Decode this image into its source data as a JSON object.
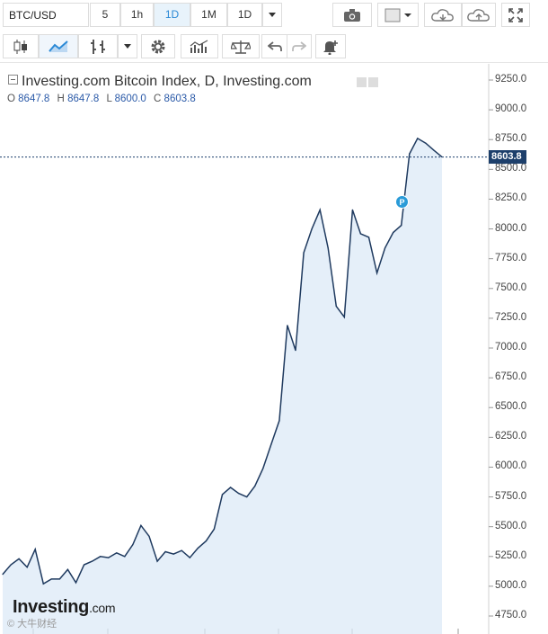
{
  "toolbar": {
    "symbol": "BTC/USD",
    "intervals": [
      {
        "label": "5",
        "active": false
      },
      {
        "label": "1h",
        "active": false
      },
      {
        "label": "1D",
        "active": true
      },
      {
        "label": "1M",
        "active": false
      },
      {
        "label": "1D",
        "active": false
      }
    ],
    "icons": {
      "dropdown": "chevron-down-icon",
      "camera": "camera-icon",
      "color_box": "color-square-icon",
      "cloud_down": "cloud-download-icon",
      "cloud_up": "cloud-upload-icon",
      "fullscreen": "fullscreen-icon",
      "candles": "candlestick-icon",
      "area": "area-chart-icon",
      "bars": "bar-chart-icon",
      "settings": "gear-icon",
      "indicators": "indicators-icon",
      "compare": "scales-icon",
      "undo": "undo-icon",
      "redo": "redo-icon",
      "alert": "bell-plus-icon"
    }
  },
  "legend": {
    "title": "Investing.com Bitcoin Index, D, Investing.com",
    "ohlc": [
      {
        "k": "O",
        "v": "8647.8"
      },
      {
        "k": "H",
        "v": "8647.8"
      },
      {
        "k": "L",
        "v": "8600.0"
      },
      {
        "k": "C",
        "v": "8603.8"
      }
    ]
  },
  "price_tag": "8603.8",
  "marker_label": "P",
  "logo": {
    "main": "Investing",
    "suffix": ".com"
  },
  "watermark": "© 大牛财经",
  "colors": {
    "line": "#1f3a5f",
    "fill": "#dce9f7",
    "accent": "#2a89d6",
    "pricetag": "#1d3f6b"
  },
  "chart_data": {
    "type": "area",
    "y_ticks": [
      "9250.0",
      "9000.0",
      "8750.0",
      "8500.0",
      "8250.0",
      "8000.0",
      "7750.0",
      "7500.0",
      "7250.0",
      "7000.0",
      "6750.0",
      "6500.0",
      "6250.0",
      "6000.0",
      "5750.0",
      "5500.0",
      "5250.0",
      "5000.0",
      "4750.0"
    ],
    "ylim": [
      4650,
      9400
    ],
    "last_price": 8603.8,
    "values": [
      5100,
      5180,
      5230,
      5160,
      5310,
      5020,
      5060,
      5060,
      5140,
      5030,
      5180,
      5210,
      5250,
      5240,
      5280,
      5250,
      5350,
      5510,
      5420,
      5210,
      5290,
      5270,
      5300,
      5240,
      5320,
      5380,
      5480,
      5770,
      5830,
      5780,
      5750,
      5840,
      5990,
      6190,
      6390,
      7190,
      6980,
      7800,
      8000,
      8160,
      7840,
      7350,
      7260,
      8160,
      7960,
      7930,
      7630,
      7840,
      7970,
      8030,
      8630,
      8760,
      8720,
      8660,
      8604
    ],
    "grid": false
  }
}
